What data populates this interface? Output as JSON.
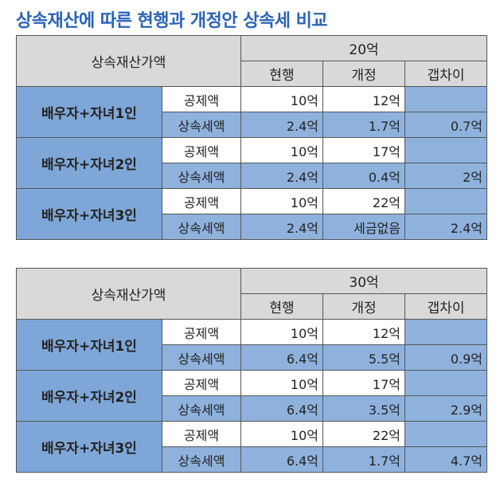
{
  "title": "상속재산에 따른 현행과 개정안 상속세 비교",
  "tables": [
    {
      "header_label": "상속재산가액",
      "amount": "20억",
      "columns": [
        "현행",
        "개정",
        "갭차이"
      ],
      "groups": [
        {
          "name": "배우자+자녀1인",
          "deduction": {
            "label": "공제액",
            "current": "10억",
            "revised": "12억",
            "gap": ""
          },
          "tax": {
            "label": "상속세액",
            "current": "2.4억",
            "revised": "1.7억",
            "gap": "0.7억"
          }
        },
        {
          "name": "배우자+자녀2인",
          "deduction": {
            "label": "공제액",
            "current": "10억",
            "revised": "17억",
            "gap": ""
          },
          "tax": {
            "label": "상속세액",
            "current": "2.4억",
            "revised": "0.4억",
            "gap": "2억"
          }
        },
        {
          "name": "배우자+자녀3인",
          "deduction": {
            "label": "공제액",
            "current": "10억",
            "revised": "22억",
            "gap": ""
          },
          "tax": {
            "label": "상속세액",
            "current": "2.4억",
            "revised": "세금없음",
            "gap": "2.4억"
          }
        }
      ]
    },
    {
      "header_label": "상속재산가액",
      "amount": "30억",
      "columns": [
        "현행",
        "개정",
        "갭차이"
      ],
      "groups": [
        {
          "name": "배우자+자녀1인",
          "deduction": {
            "label": "공제액",
            "current": "10억",
            "revised": "12억",
            "gap": ""
          },
          "tax": {
            "label": "상속세액",
            "current": "6.4억",
            "revised": "5.5억",
            "gap": "0.9억"
          }
        },
        {
          "name": "배우자+자녀2인",
          "deduction": {
            "label": "공제액",
            "current": "10억",
            "revised": "17억",
            "gap": ""
          },
          "tax": {
            "label": "상속세액",
            "current": "6.4억",
            "revised": "3.5억",
            "gap": "2.9억"
          }
        },
        {
          "name": "배우자+자녀3인",
          "deduction": {
            "label": "공제액",
            "current": "10억",
            "revised": "22억",
            "gap": ""
          },
          "tax": {
            "label": "상속세액",
            "current": "6.4억",
            "revised": "1.7억",
            "gap": "4.7억"
          }
        }
      ]
    }
  ]
}
